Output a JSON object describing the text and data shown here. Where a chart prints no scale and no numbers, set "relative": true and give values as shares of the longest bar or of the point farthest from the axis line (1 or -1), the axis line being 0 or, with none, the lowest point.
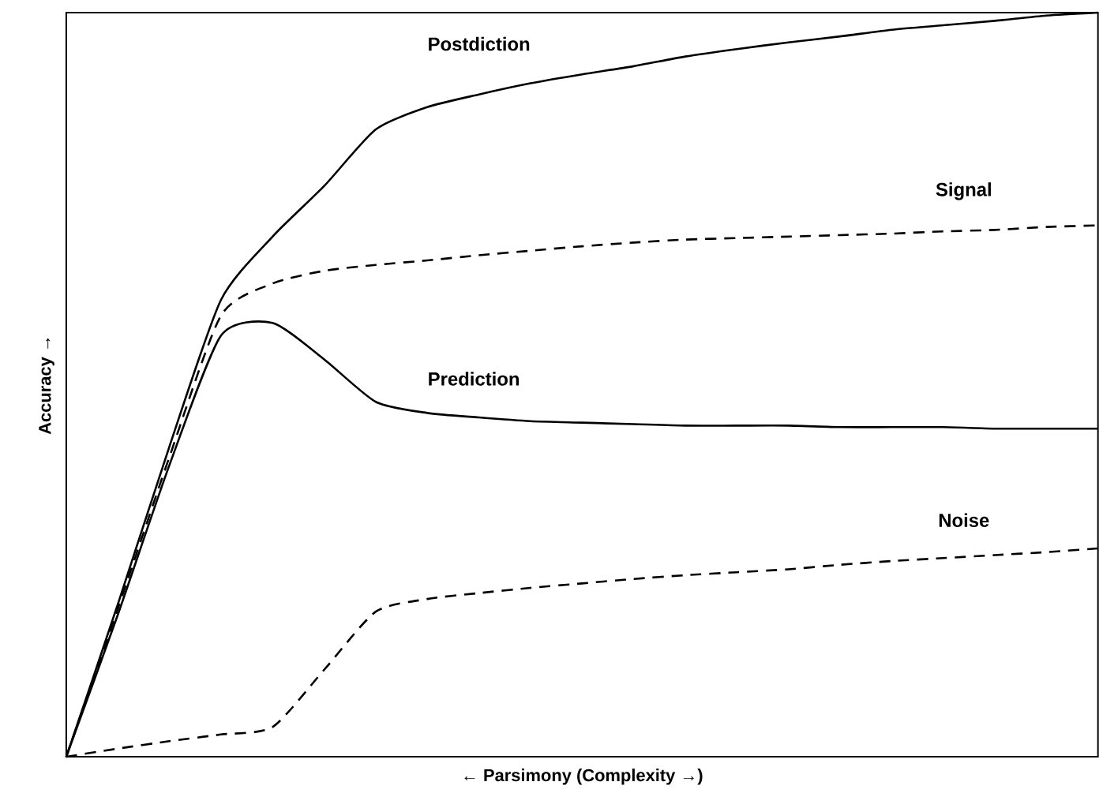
{
  "chart_data": {
    "type": "line",
    "relative": true,
    "xlabel": "← Parsimony      (Complexity →)",
    "ylabel": "Accuracy →",
    "legend": false,
    "marker": "none",
    "categories": [
      null,
      null,
      null,
      null,
      null,
      null,
      null,
      null,
      null,
      null,
      null,
      null,
      null,
      null,
      null,
      null,
      null,
      null,
      null,
      null,
      null
    ],
    "series": [
      {
        "name": "Postdiction",
        "color": "#000000",
        "line_style": "solid",
        "values": [
          0,
          0.205,
          0.417,
          0.614,
          0.699,
          0.767,
          0.843,
          0.873,
          0.89,
          0.905,
          0.917,
          0.928,
          0.941,
          0.951,
          0.96,
          0.968,
          0.977,
          0.983,
          0.989,
          0.996,
          1.0
        ]
      },
      {
        "name": "Signal",
        "color": "#000000",
        "line_style": "dashed",
        "values": [
          0,
          0.199,
          0.403,
          0.593,
          0.636,
          0.653,
          0.661,
          0.667,
          0.674,
          0.68,
          0.686,
          0.691,
          0.695,
          0.697,
          0.699,
          0.701,
          0.703,
          0.706,
          0.708,
          0.712,
          0.714
        ]
      },
      {
        "name": "Prediction",
        "color": "#000000",
        "line_style": "solid",
        "values": [
          0,
          0.191,
          0.392,
          0.566,
          0.583,
          0.534,
          0.477,
          0.462,
          0.456,
          0.451,
          0.449,
          0.447,
          0.445,
          0.445,
          0.445,
          0.443,
          0.443,
          0.443,
          0.441,
          0.441,
          0.441
        ]
      },
      {
        "name": "Noise",
        "color": "#000000",
        "line_style": "dashed",
        "values": [
          0,
          0.011,
          0.021,
          0.03,
          0.04,
          0.117,
          0.195,
          0.212,
          0.22,
          0.227,
          0.233,
          0.239,
          0.244,
          0.248,
          0.252,
          0.258,
          0.263,
          0.267,
          0.271,
          0.275,
          0.28
        ]
      }
    ]
  }
}
